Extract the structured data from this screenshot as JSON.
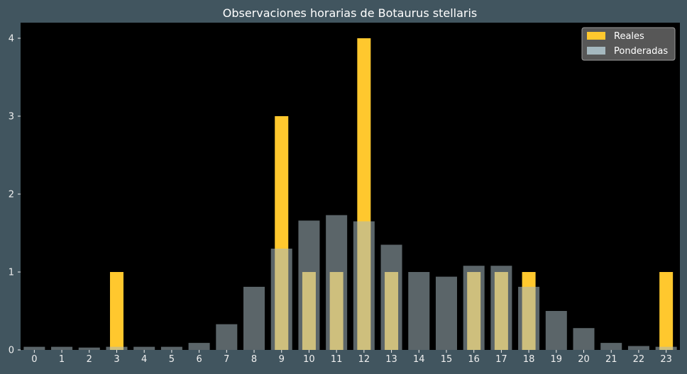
{
  "chart_data": {
    "type": "bar",
    "title": "Observaciones horarias de Botaurus stellaris",
    "xlabel": "",
    "ylabel": "",
    "categories": [
      "0",
      "1",
      "2",
      "3",
      "4",
      "5",
      "6",
      "7",
      "8",
      "9",
      "10",
      "11",
      "12",
      "13",
      "14",
      "15",
      "16",
      "17",
      "18",
      "19",
      "20",
      "21",
      "22",
      "23"
    ],
    "series": [
      {
        "name": "Reales",
        "color": "#ffc82e",
        "values": [
          0,
          0,
          0,
          1,
          0,
          0,
          0,
          0,
          0,
          3,
          1,
          1,
          4,
          1,
          0,
          0,
          1,
          1,
          1,
          0,
          0,
          0,
          0,
          1
        ]
      },
      {
        "name": "Ponderadas",
        "color": "#a5b8bf",
        "values": [
          0.04,
          0.04,
          0.03,
          0.04,
          0.04,
          0.04,
          0.09,
          0.33,
          0.81,
          1.3,
          1.66,
          1.73,
          1.65,
          1.35,
          1.0,
          0.94,
          1.08,
          1.08,
          0.81,
          0.5,
          0.28,
          0.09,
          0.05,
          0.04
        ]
      }
    ],
    "yticks": [
      0,
      1,
      2,
      3,
      4
    ],
    "ylim": [
      0,
      4.2
    ],
    "grid": false,
    "legend": "top-right",
    "colors": {
      "figure_background": "#41555f",
      "axes_background": "#000000"
    }
  }
}
